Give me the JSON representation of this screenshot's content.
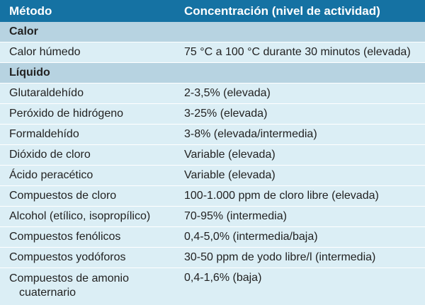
{
  "header": {
    "col1": "Método",
    "col2": "Concentración (nivel de actividad)"
  },
  "sections": [
    {
      "title": "Calor",
      "rows": [
        {
          "method": "Calor húmedo",
          "value": "75 °C a 100 °C durante 30 minutos (elevada)"
        }
      ]
    },
    {
      "title": "Líquido",
      "rows": [
        {
          "method": "Glutaraldehído",
          "value": "2-3,5% (elevada)"
        },
        {
          "method": "Peróxido de hidrógeno",
          "value": "3-25% (elevada)"
        },
        {
          "method": "Formaldehído",
          "value": "3-8% (elevada/intermedia)"
        },
        {
          "method": "Dióxido de cloro",
          "value": "Variable (elevada)"
        },
        {
          "method": "Ácido peracético",
          "value": "Variable (elevada)"
        },
        {
          "method": "Compuestos de cloro",
          "value": "100-1.000 ppm de cloro libre (elevada)"
        },
        {
          "method": "Alcohol (etílico, isopropílico)",
          "value": "70-95% (intermedia)"
        },
        {
          "method": "Compuestos fenólicos",
          "value": "0,4-5,0% (intermedia/baja)"
        },
        {
          "method": "Compuestos yodóforos",
          "value": "30-50 ppm de yodo libre/l (intermedia)"
        }
      ]
    }
  ],
  "last_row": {
    "method_line1": "Compuestos de amonio",
    "method_line2": "cuaternario",
    "value": "0,4-1,6% (baja)"
  }
}
